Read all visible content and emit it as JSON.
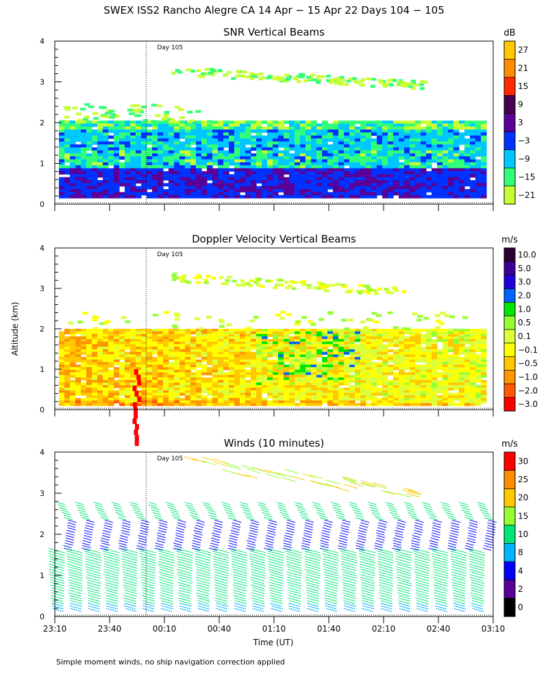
{
  "figure": {
    "title": "SWEX ISS2 Rancho Alegre CA  14 Apr − 15 Apr 22 Days 104 − 105",
    "ylabel": "Altitude (km)",
    "xlabel": "Time (UT)",
    "footnote": "Simple moment winds, no ship navigation correction applied",
    "day_marker": "Day 105"
  },
  "colors": {
    "snr_scale": [
      "#c8ff32",
      "#32ff78",
      "#00c8ff",
      "#0032ff",
      "#5a0096",
      "#460050",
      "#ff2800",
      "#ff8c00",
      "#ffc800"
    ],
    "doppler_scale": [
      "#ff0000",
      "#ff5a00",
      "#ff9600",
      "#ffc800",
      "#ffff00",
      "#dcff3c",
      "#96ff32",
      "#00e600",
      "#0064ff",
      "#1e00dc",
      "#3c0096",
      "#300030"
    ],
    "wind_scale": [
      "#000000",
      "#5a0096",
      "#0000ff",
      "#00b4ff",
      "#00e678",
      "#96ff32",
      "#ffc800",
      "#ff8c00",
      "#ff0000"
    ]
  },
  "chart_data": [
    {
      "type": "heatmap",
      "title": "SNR Vertical Beams",
      "colorbar_unit": "dB",
      "colorbar_ticks": [
        "27",
        "21",
        "15",
        "9",
        "3",
        "−3",
        "−9",
        "−15",
        "−21"
      ],
      "y_ticks": [
        "0",
        "1",
        "2",
        "3",
        "4"
      ],
      "ylim": [
        0,
        4
      ],
      "xlim": [
        "23:10",
        "03:10"
      ],
      "day_boundary": "00:00",
      "data_top_km": 2.05,
      "upper_layer_km": [
        3.0,
        3.3
      ]
    },
    {
      "type": "heatmap",
      "title": "Doppler Velocity Vertical Beams",
      "colorbar_unit": "m/s",
      "colorbar_ticks": [
        "10.0",
        "5.0",
        "3.0",
        "2.0",
        "1.0",
        "0.5",
        "0.1",
        "−0.1",
        "−0.5",
        "−1.0",
        "−2.0",
        "−3.0"
      ],
      "y_ticks": [
        "0",
        "1",
        "2",
        "3",
        "4"
      ],
      "ylim": [
        0,
        4
      ],
      "xlim": [
        "23:10",
        "03:10"
      ],
      "day_boundary": "00:00"
    },
    {
      "type": "scatter",
      "title": "Winds (10 minutes)",
      "colorbar_unit": "m/s",
      "colorbar_ticks": [
        "30",
        "25",
        "20",
        "15",
        "10",
        "8",
        "4",
        "2",
        "0"
      ],
      "y_ticks": [
        "0",
        "1",
        "2",
        "3",
        "4"
      ],
      "ylim": [
        0,
        4
      ],
      "x_ticks": [
        "23:10",
        "23:40",
        "00:10",
        "00:40",
        "01:10",
        "01:40",
        "02:10",
        "02:40",
        "03:10"
      ],
      "xlim": [
        "23:10",
        "03:10"
      ],
      "day_boundary": "00:00",
      "profile_interval_min": 10,
      "profile_count": 24
    }
  ]
}
